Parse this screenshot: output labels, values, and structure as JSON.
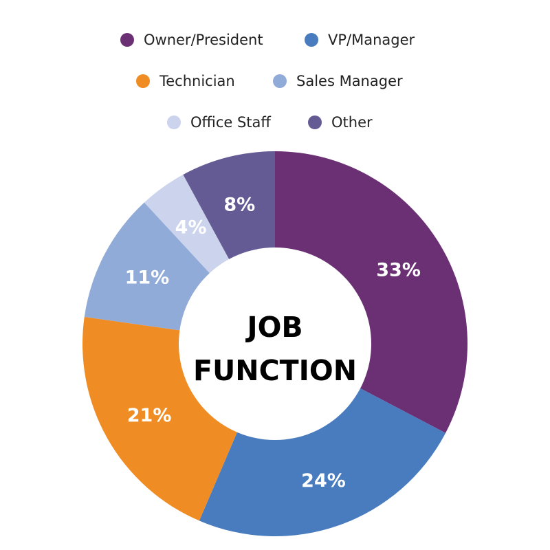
{
  "chart_data": {
    "type": "pie",
    "donut": true,
    "center_title": [
      "JOB",
      "FUNCTION"
    ],
    "slices": [
      {
        "label": "Owner/President",
        "value": 33,
        "display": "33%",
        "color": "#6B3074"
      },
      {
        "label": "VP/Manager",
        "value": 24,
        "display": "24%",
        "color": "#497CBF"
      },
      {
        "label": "Technician",
        "value": 21,
        "display": "21%",
        "color": "#EF8D24"
      },
      {
        "label": "Sales Manager",
        "value": 11,
        "display": "11%",
        "color": "#91ABD8"
      },
      {
        "label": "Office Staff",
        "value": 4,
        "display": "4%",
        "color": "#CBD4EC"
      },
      {
        "label": "Other",
        "value": 8,
        "display": "8%",
        "color": "#655B94"
      }
    ],
    "legend_position": "top"
  }
}
